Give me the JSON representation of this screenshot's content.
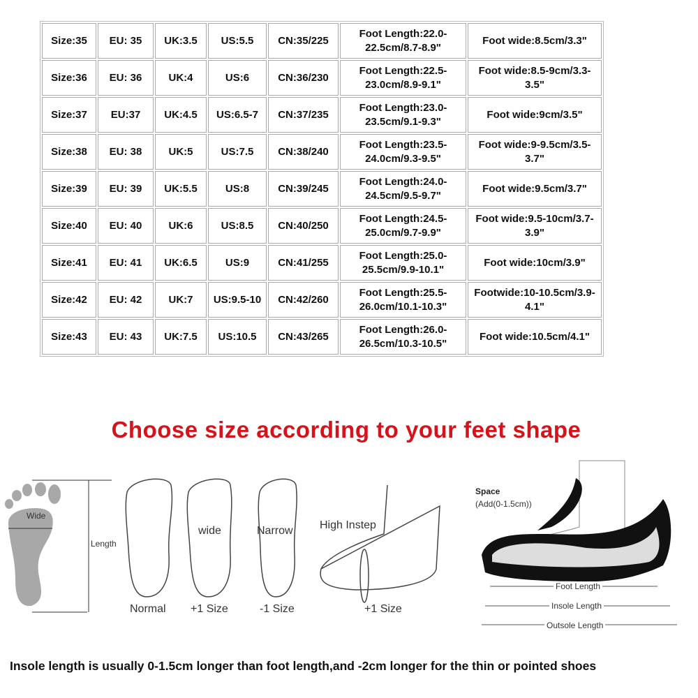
{
  "size_table": {
    "rows": [
      [
        "Size:35",
        "EU: 35",
        "UK:3.5",
        "US:5.5",
        "CN:35/225",
        "Foot Length:22.0-22.5cm/8.7-8.9\"",
        "Foot wide:8.5cm/3.3\""
      ],
      [
        "Size:36",
        "EU: 36",
        "UK:4",
        "US:6",
        "CN:36/230",
        "Foot Length:22.5-23.0cm/8.9-9.1\"",
        "Foot wide:8.5-9cm/3.3-3.5\""
      ],
      [
        "Size:37",
        "EU:37",
        "UK:4.5",
        "US:6.5-7",
        "CN:37/235",
        "Foot Length:23.0-23.5cm/9.1-9.3\"",
        "Foot wide:9cm/3.5\""
      ],
      [
        "Size:38",
        "EU: 38",
        "UK:5",
        "US:7.5",
        "CN:38/240",
        "Foot Length:23.5-24.0cm/9.3-9.5\"",
        "Foot wide:9-9.5cm/3.5-3.7\""
      ],
      [
        "Size:39",
        "EU: 39",
        "UK:5.5",
        "US:8",
        "CN:39/245",
        "Foot Length:24.0-24.5cm/9.5-9.7\"",
        "Foot wide:9.5cm/3.7\""
      ],
      [
        "Size:40",
        "EU: 40",
        "UK:6",
        "US:8.5",
        "CN:40/250",
        "Foot Length:24.5-25.0cm/9.7-9.9\"",
        "Foot wide:9.5-10cm/3.7-3.9\""
      ],
      [
        "Size:41",
        "EU: 41",
        "UK:6.5",
        "US:9",
        "CN:41/255",
        "Foot Length:25.0-25.5cm/9.9-10.1\"",
        "Foot wide:10cm/3.9\""
      ],
      [
        "Size:42",
        "EU: 42",
        "UK:7",
        "US:9.5-10",
        "CN:42/260",
        "Foot Length:25.5-26.0cm/10.1-10.3\"",
        "Footwide:10-10.5cm/3.9-4.1\""
      ],
      [
        "Size:43",
        "EU: 43",
        "UK:7.5",
        "US:10.5",
        "CN:43/265",
        "Foot Length:26.0-26.5cm/10.3-10.5\"",
        "Foot wide:10.5cm/4.1\""
      ]
    ]
  },
  "title": "Choose size according to your feet shape",
  "title_color": "#d4141a",
  "feet": {
    "wide_label": "Wide",
    "length_label": "Length",
    "normal": "Normal",
    "wide": "wide",
    "wide_size": "+1 Size",
    "narrow": "Narrow",
    "narrow_size": "-1 Size",
    "high_instep": "High Instep",
    "high_instep_size": "+1 Size"
  },
  "shoe": {
    "space": "Space",
    "space_add": "(Add(0-1.5cm))",
    "foot_length": "Foot Length",
    "insole_length": "Insole Length",
    "outsole_length": "Outsole Length"
  },
  "footer": "Insole length is usually 0-1.5cm longer than foot length,and -2cm longer for the thin or pointed shoes"
}
